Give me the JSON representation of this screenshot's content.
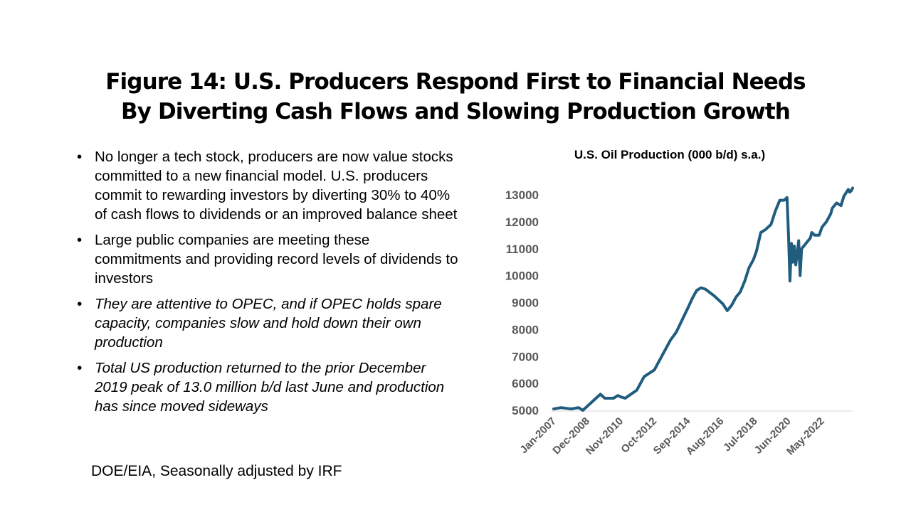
{
  "slide": {
    "title_line1": "Figure 14: U.S. Producers Respond First to Financial Needs",
    "title_line2": "By Diverting Cash Flows and Slowing Production Growth",
    "bullets": [
      {
        "text": "No longer a tech stock, producers are now value stocks committed to a new financial model. U.S. producers commit to rewarding investors by diverting 30% to 40% of cash flows to dividends or an improved balance sheet",
        "italic": false
      },
      {
        "text": "Large public companies are meeting these commitments and providing record levels of dividends to investors",
        "italic": false
      },
      {
        "text": "They are attentive to OPEC, and if OPEC holds spare capacity, companies slow and hold down their own production",
        "italic": true
      },
      {
        "text": "Total US production returned to the prior December 2019 peak of 13.0 million b/d last June and production has since moved sideways",
        "italic": true
      }
    ],
    "source_note": "DOE/EIA, Seasonally adjusted by IRF"
  },
  "chart_data": {
    "type": "line",
    "title": "U.S. Oil Production  (000 b/d) s.a.)",
    "xlabel": "",
    "ylabel": "",
    "ylim": [
      5000,
      13000
    ],
    "yticks": [
      5000,
      6000,
      7000,
      8000,
      9000,
      10000,
      11000,
      12000,
      13000
    ],
    "xticks": [
      "Jan-2007",
      "Dec-2008",
      "Nov-2010",
      "Oct-2012",
      "Sep-2014",
      "Aug-2016",
      "Jul-2018",
      "Jun-2020",
      "May-2022"
    ],
    "grid": false,
    "legend": "none",
    "line_color": "#1f5c7e",
    "series": [
      {
        "x": [
          "Jan-2007",
          "Jun-2007",
          "Jan-2008",
          "Jun-2008",
          "Sep-2008",
          "Dec-2008",
          "Mar-2009",
          "Jun-2009",
          "Sep-2009",
          "Dec-2009",
          "Jun-2010",
          "Sep-2010",
          "Nov-2010",
          "Feb-2011",
          "Jun-2011",
          "Oct-2011",
          "Mar-2012",
          "Oct-2012",
          "Mar-2013",
          "Sep-2013",
          "Jan-2014",
          "Sep-2014",
          "Dec-2014",
          "Mar-2015",
          "Jun-2015",
          "Sep-2015",
          "Mar-2016",
          "Sep-2016",
          "Dec-2016",
          "Mar-2017",
          "Jun-2017",
          "Sep-2017",
          "Dec-2017",
          "Mar-2018",
          "Jun-2018",
          "Aug-2018",
          "Nov-2018",
          "Feb-2019",
          "Jun-2019",
          "Sep-2019",
          "Dec-2019",
          "Mar-2020",
          "May-2020",
          "Jun-2020",
          "Jul-2020",
          "Aug-2020",
          "Sep-2020",
          "Oct-2020",
          "Nov-2020",
          "Jan-2021",
          "Feb-2021",
          "Mar-2021",
          "Jun-2021",
          "Sep-2021",
          "Oct-2021",
          "Dec-2021",
          "Mar-2022",
          "May-2022",
          "Aug-2022",
          "Nov-2022",
          "Dec-2022",
          "Mar-2023",
          "Jun-2023",
          "Aug-2023",
          "Nov-2023",
          "Dec-2023",
          "Jan-2024",
          "Feb-2024"
        ],
        "values": [
          5050,
          5100,
          5050,
          5100,
          5000,
          5150,
          5300,
          5450,
          5600,
          5450,
          5450,
          5550,
          5500,
          5450,
          5600,
          5750,
          6250,
          6500,
          7000,
          7600,
          7900,
          8800,
          9150,
          9450,
          9550,
          9500,
          9250,
          8950,
          8700,
          8900,
          9200,
          9400,
          9800,
          10300,
          10600,
          10900,
          11600,
          11700,
          11900,
          12400,
          12800,
          12800,
          12900,
          11500,
          9800,
          11200,
          10500,
          11100,
          10400,
          11300,
          10000,
          11000,
          11200,
          11400,
          11600,
          11500,
          11500,
          11800,
          12000,
          12300,
          12500,
          12700,
          12600,
          12950,
          13200,
          13100,
          13150,
          13250
        ]
      }
    ]
  }
}
